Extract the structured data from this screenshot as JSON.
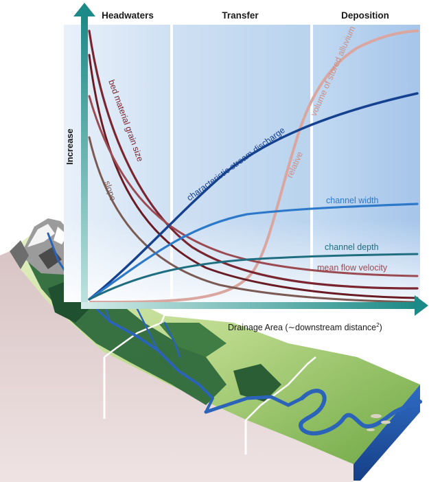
{
  "zones": [
    {
      "label": "Headwaters"
    },
    {
      "label": "Transfer"
    },
    {
      "label": "Deposition"
    }
  ],
  "axes": {
    "y_label": "Increase",
    "x_label": "Drainage Area (∼downstream distance",
    "x_label_sup": "2",
    "x_label_close": ")"
  },
  "curves": [
    {
      "key": "grain",
      "label": "bed material grain size",
      "color": "#7a2630"
    },
    {
      "key": "slope",
      "label": "slope",
      "color": "#7a5a52"
    },
    {
      "key": "discharge",
      "label": "characteristic stream discharge",
      "color": "#15418f"
    },
    {
      "key": "alluvium",
      "label": "volume of stored alluvium",
      "color": "#d9a6a0"
    },
    {
      "key": "relative",
      "label": "relative",
      "color": "#d9a6a0"
    },
    {
      "key": "width",
      "label": "channel width",
      "color": "#2d79c9"
    },
    {
      "key": "depth",
      "label": "channel depth",
      "color": "#1f6e80"
    },
    {
      "key": "velocity",
      "label": "mean flow velocity",
      "color": "#9a4a50"
    },
    {
      "key": "extra",
      "label": "",
      "color": "#6a1c24"
    }
  ],
  "colors": {
    "axis": "#1c8a86",
    "zone_bg": "#d6e4f4",
    "zone_bg_dark": "#a8c6ea",
    "divider": "#ffffff",
    "terrain_side": "#e3d3d4",
    "grass_light": "#cfe3a6",
    "grass_dark": "#5e9a3a",
    "forest": "#255e36",
    "river": "#2a63b8",
    "rock": "#8b8b8b"
  }
}
